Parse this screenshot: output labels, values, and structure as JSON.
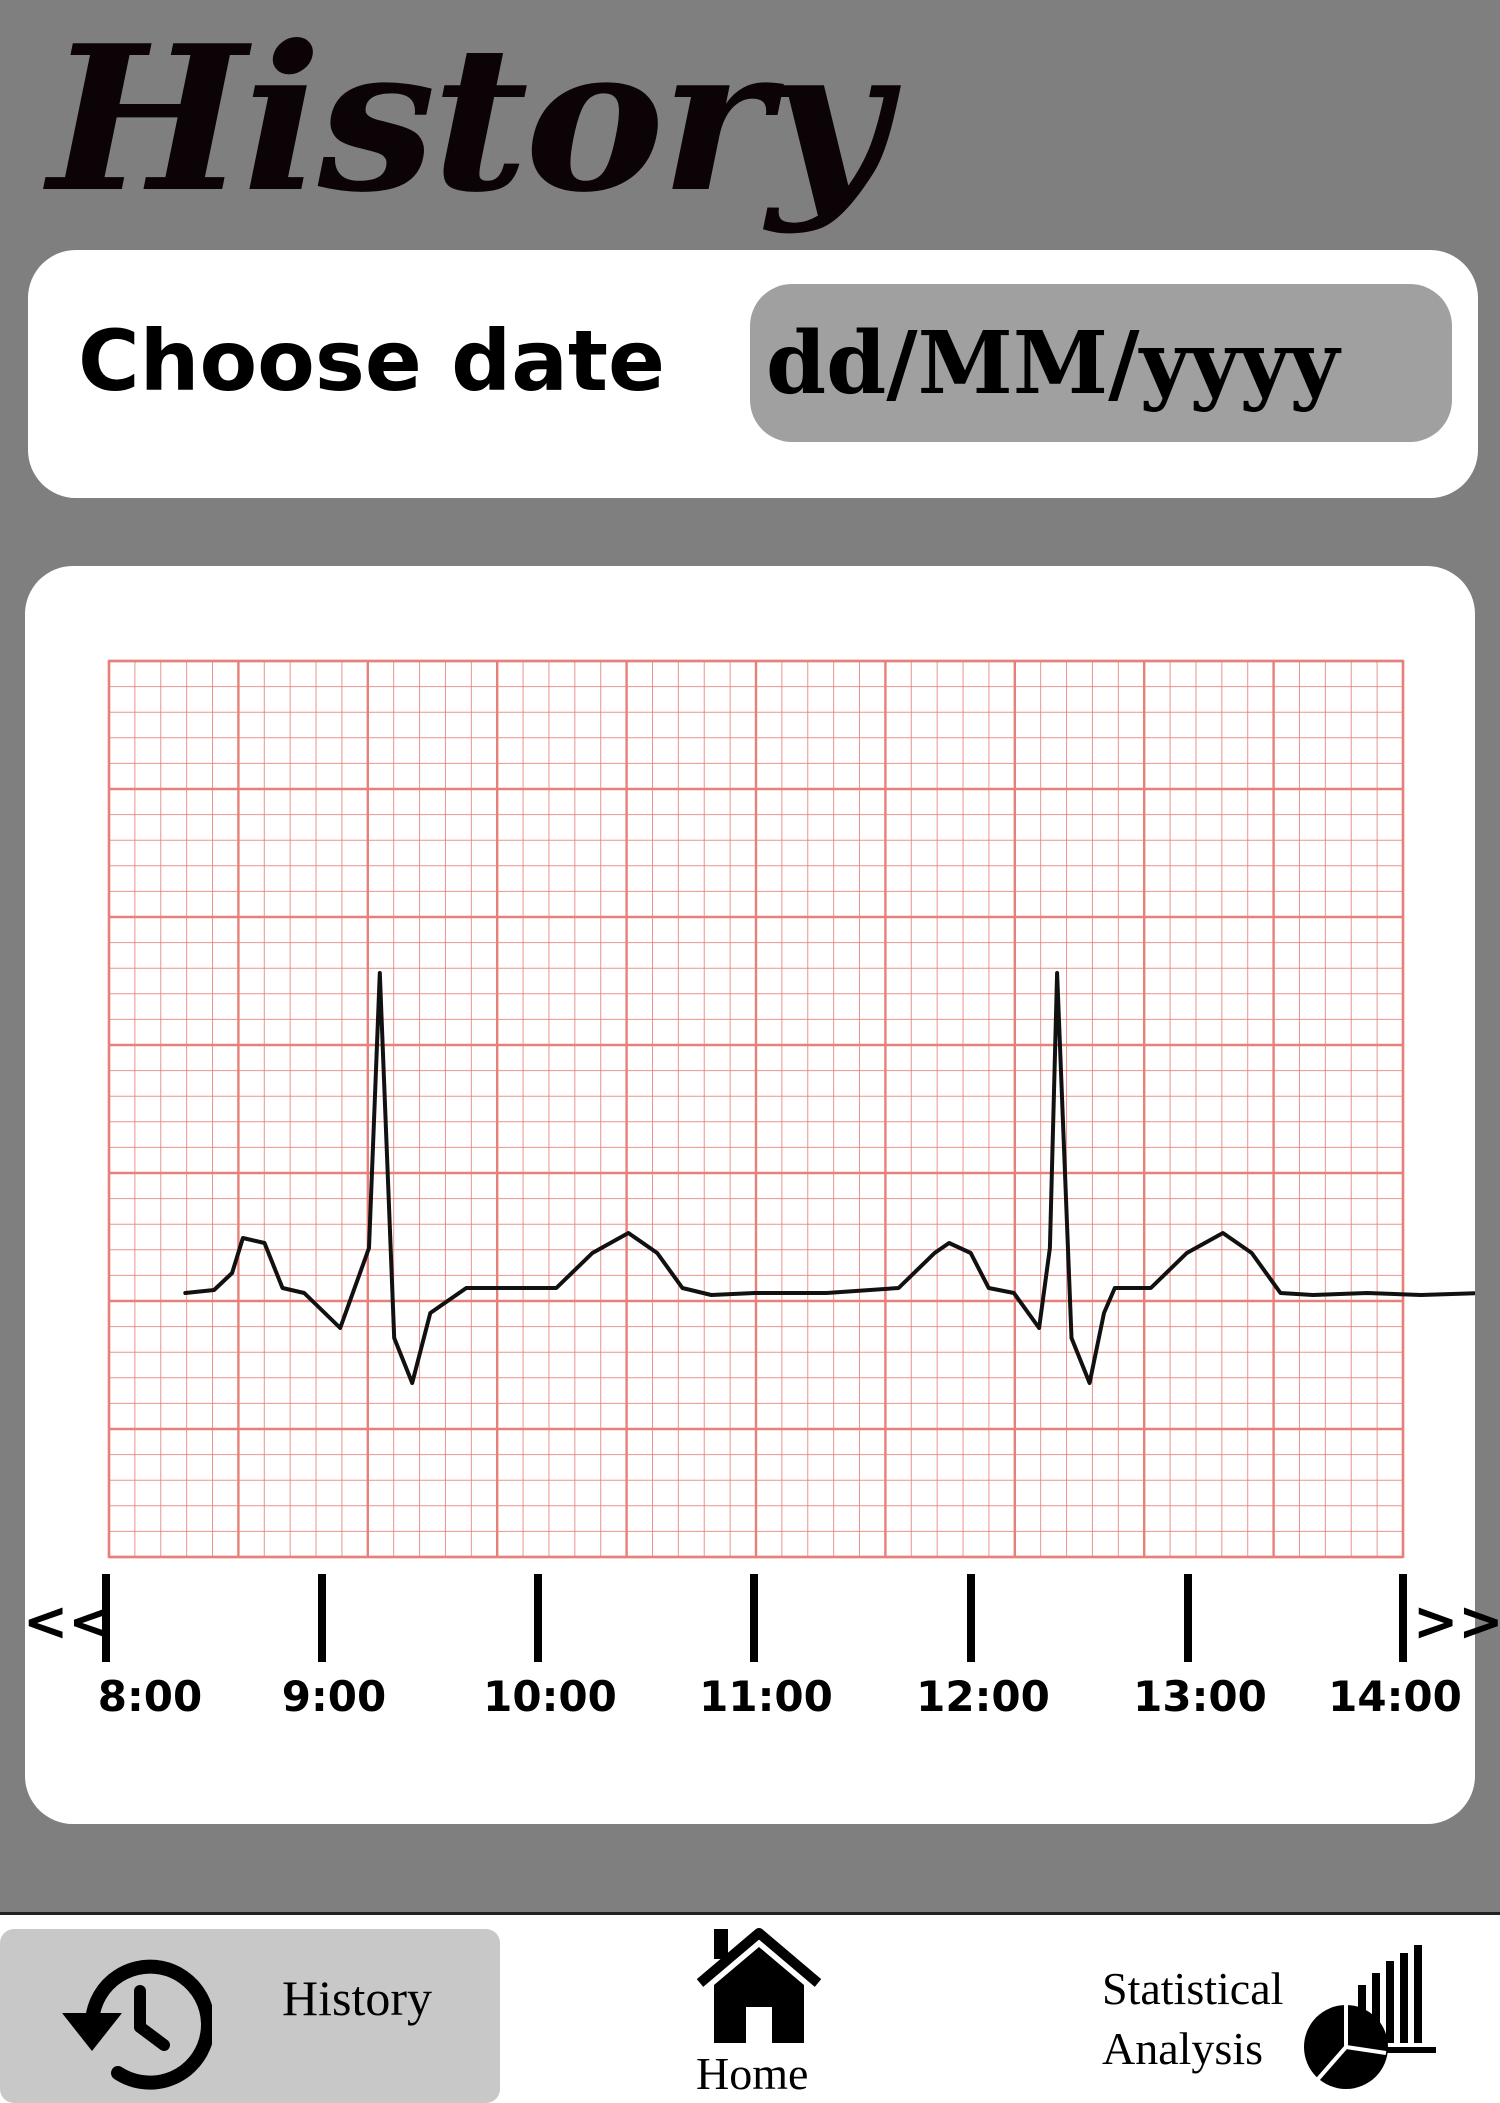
{
  "header": {
    "title": "History"
  },
  "date_picker": {
    "label": "Choose date",
    "placeholder": "dd/MM/yyyy"
  },
  "chart_controls": {
    "prev_label": "<<",
    "next_label": ">>"
  },
  "colors": {
    "grid": "#e8807a",
    "trace": "#111111",
    "background": "#7f7f7f"
  },
  "chart_data": {
    "type": "line",
    "title": "",
    "x_ticks": [
      "8:00",
      "9:00",
      "10:00",
      "11:00",
      "12:00",
      "13:00",
      "14:00"
    ],
    "xlim": [
      "8:00",
      "14:00"
    ],
    "grid": true,
    "series": [
      {
        "x": [
          "8:22",
          "8:30",
          "8:35",
          "8:38",
          "8:44",
          "8:49",
          "8:55",
          "9:05",
          "9:13",
          "9:16",
          "9:20",
          "9:25",
          "9:30",
          "9:40",
          "10:05",
          "10:15",
          "10:25",
          "10:33",
          "10:40",
          "10:48",
          "11:00",
          "11:20",
          "11:40",
          "11:50",
          "11:54",
          "12:00",
          "12:05",
          "12:12",
          "12:19",
          "12:22",
          "12:24",
          "12:28",
          "12:33",
          "12:37",
          "12:40",
          "12:43",
          "12:50",
          "13:00",
          "13:10",
          "13:18",
          "13:26",
          "13:35",
          "13:50",
          "14:05",
          "14:22"
        ],
        "y": [
          0.0,
          0.03,
          0.2,
          0.55,
          0.5,
          0.05,
          0.0,
          -0.35,
          0.45,
          3.2,
          -0.45,
          -0.9,
          -0.2,
          0.05,
          0.05,
          0.4,
          0.6,
          0.4,
          0.05,
          -0.02,
          0.0,
          0.0,
          0.05,
          0.4,
          0.5,
          0.4,
          0.05,
          0.0,
          -0.35,
          0.45,
          3.2,
          -0.45,
          -0.9,
          -0.2,
          0.05,
          0.05,
          0.05,
          0.4,
          0.6,
          0.4,
          0.0,
          -0.02,
          0.0,
          -0.02,
          0.0
        ]
      }
    ]
  },
  "bottom_nav": {
    "history_label": "History",
    "home_label": "Home",
    "stats_label_line1": "Statistical",
    "stats_label_line2": "Analysis"
  }
}
